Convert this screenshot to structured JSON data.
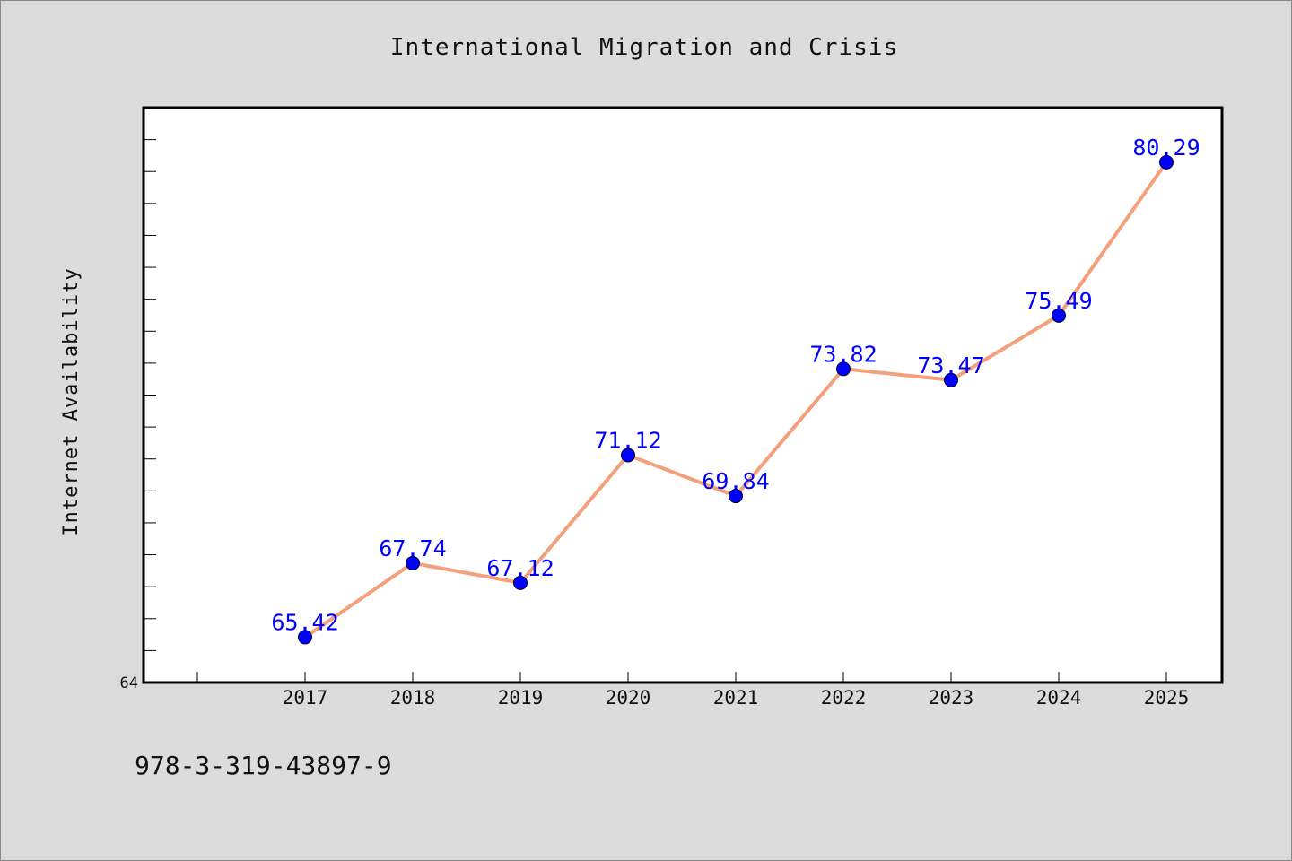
{
  "chart_data": {
    "type": "line",
    "title": "International Migration and Crisis",
    "xlabel": "",
    "ylabel": "Internet Availability",
    "categories": [
      "2017",
      "2018",
      "2019",
      "2020",
      "2021",
      "2022",
      "2023",
      "2024",
      "2025"
    ],
    "series": [
      {
        "values": [
          65.42,
          67.74,
          67.12,
          71.12,
          69.84,
          73.82,
          73.47,
          75.49,
          80.29
        ]
      }
    ],
    "value_labels": [
      "65.42",
      "67.74",
      "67.12",
      "71.12",
      "69.84",
      "73.82",
      "73.47",
      "75.49",
      "80.29"
    ],
    "ylim": [
      64,
      82
    ],
    "y_tick_labels": [
      "64"
    ],
    "y_minor_step": 1,
    "grid": false,
    "legend": "none",
    "colors": {
      "line": "#f4a07c",
      "marker": "#0000ff",
      "labels": "#0000ff",
      "plot_background": "#ffffff",
      "figure_background": "#dcdcdc"
    }
  },
  "footer": {
    "isbn": "978-3-319-43897-9"
  }
}
